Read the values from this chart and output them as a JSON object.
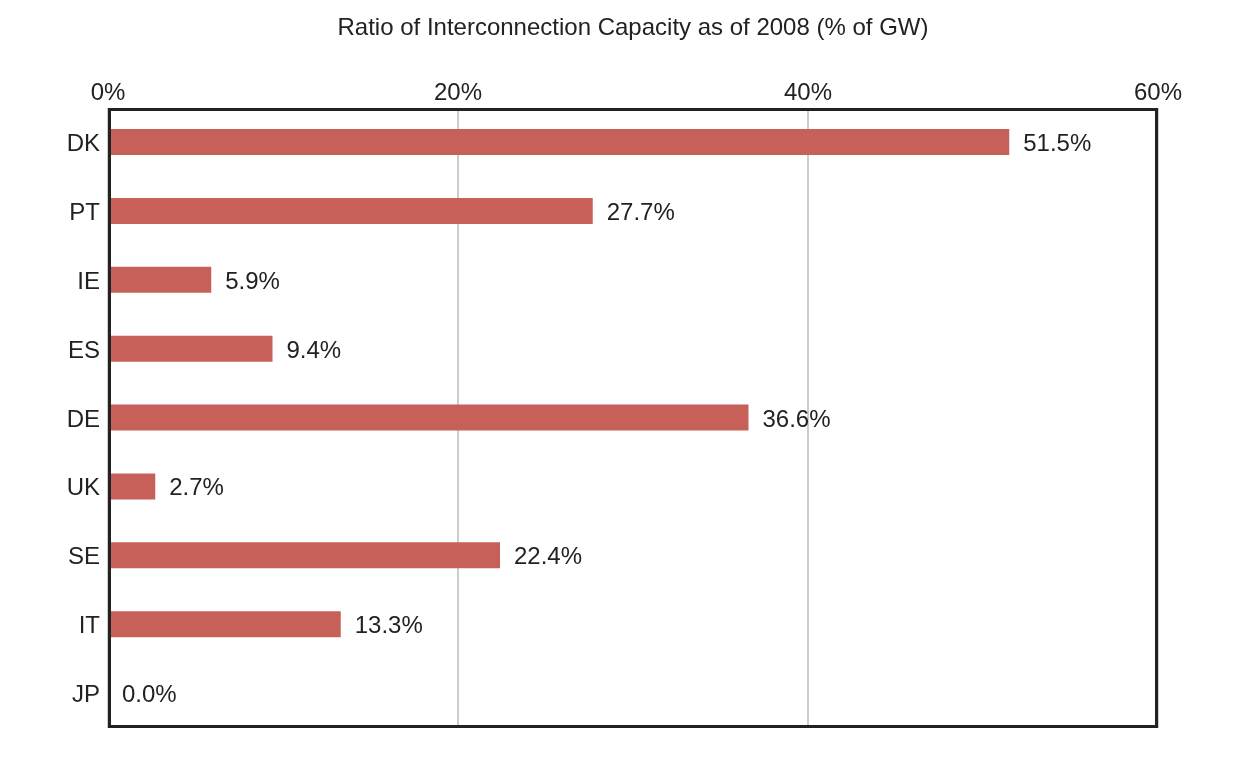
{
  "chart_data": {
    "type": "bar",
    "orientation": "horizontal",
    "xlabel": "Ratio of Interconnection Capacity as of 2008 (% of GW)",
    "categories": [
      "DK",
      "PT",
      "IE",
      "ES",
      "DE",
      "UK",
      "SE",
      "IT",
      "JP"
    ],
    "values": [
      51.5,
      27.7,
      5.9,
      9.4,
      36.6,
      2.7,
      22.4,
      13.3,
      0.0
    ],
    "value_labels": [
      "51.5%",
      "27.7%",
      "5.9%",
      "9.4%",
      "36.6%",
      "2.7%",
      "22.4%",
      "13.3%",
      "0.0%"
    ],
    "color": "#c8605a",
    "xlim": [
      0,
      60
    ],
    "xticks": [
      {
        "value": 0,
        "label": "0%"
      },
      {
        "value": 20,
        "label": "20%"
      },
      {
        "value": 40,
        "label": "40%"
      },
      {
        "value": 60,
        "label": "60%"
      }
    ],
    "grid": "x"
  }
}
